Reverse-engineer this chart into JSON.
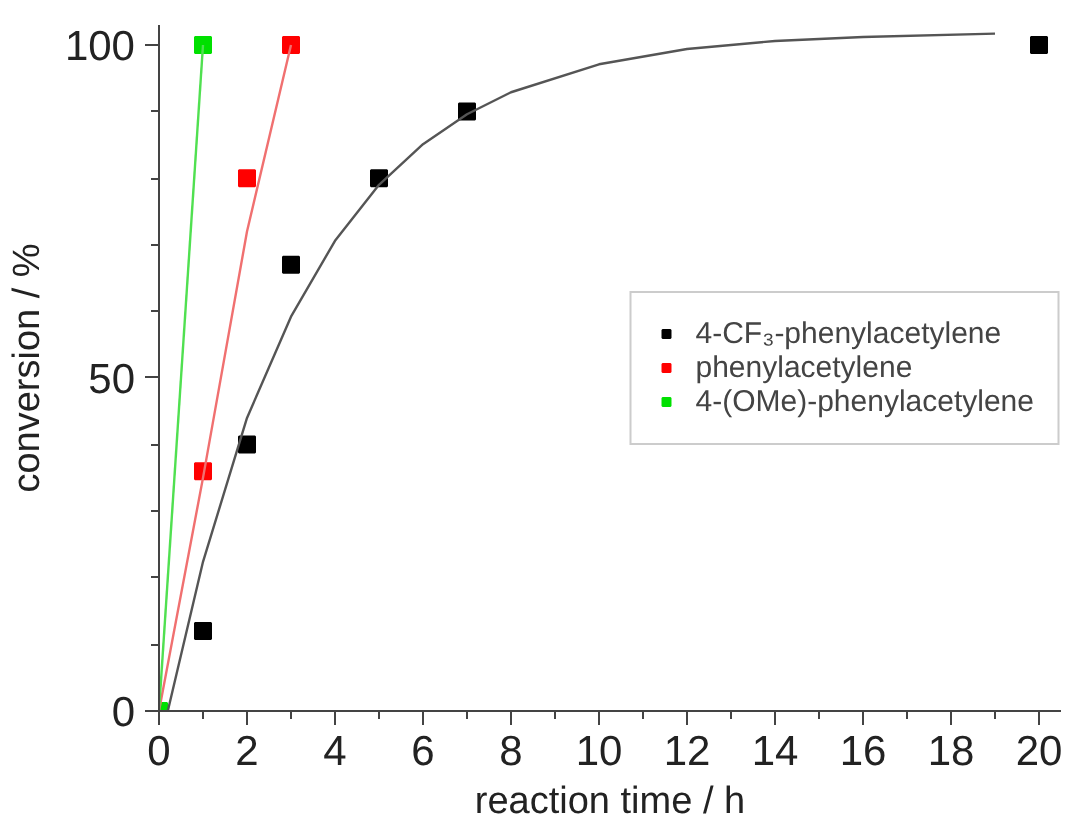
{
  "chart_data": {
    "type": "scatter",
    "xlabel": "reaction time / h",
    "ylabel": "conversion / %",
    "xlim": [
      0,
      20.5
    ],
    "ylim": [
      0,
      103
    ],
    "xticks": [
      0,
      2,
      4,
      6,
      8,
      10,
      12,
      14,
      16,
      18,
      20
    ],
    "yticks": [
      0,
      50,
      100
    ],
    "grid": false,
    "legend": "right",
    "series": [
      {
        "name": "4-CF₃-phenylacetylene",
        "color": "#000000",
        "marker": "square",
        "x": [
          1,
          2,
          3,
          5,
          7,
          20
        ],
        "values": [
          12,
          40,
          67,
          80,
          90,
          100
        ]
      },
      {
        "name": "phenylacetylene",
        "color": "#ff0000",
        "marker": "square",
        "x": [
          1,
          2,
          3
        ],
        "values": [
          36,
          80,
          100
        ]
      },
      {
        "name": "4-(OMe)-phenylacetylene",
        "color": "#00e000",
        "marker": "square",
        "x": [
          0,
          1
        ],
        "values": [
          0,
          100
        ]
      },
      {
        "type": "line",
        "marker": "none",
        "color": "#555555",
        "x": [
          0.2,
          1,
          2,
          3,
          4,
          5,
          6,
          7,
          8,
          10,
          12,
          14,
          16,
          19
        ],
        "values": [
          0,
          22.4,
          44,
          59.2,
          70.6,
          79,
          85.1,
          89.6,
          92.9,
          97.1,
          99.4,
          100.6,
          101.2,
          101.7
        ]
      },
      {
        "type": "line",
        "marker": "none",
        "color": "#f07070",
        "x": [
          0,
          1,
          2,
          3
        ],
        "values": [
          0,
          35,
          72,
          100
        ]
      },
      {
        "type": "line",
        "marker": "none",
        "color": "#50e050",
        "x": [
          0,
          1
        ],
        "values": [
          0,
          100
        ]
      }
    ]
  }
}
